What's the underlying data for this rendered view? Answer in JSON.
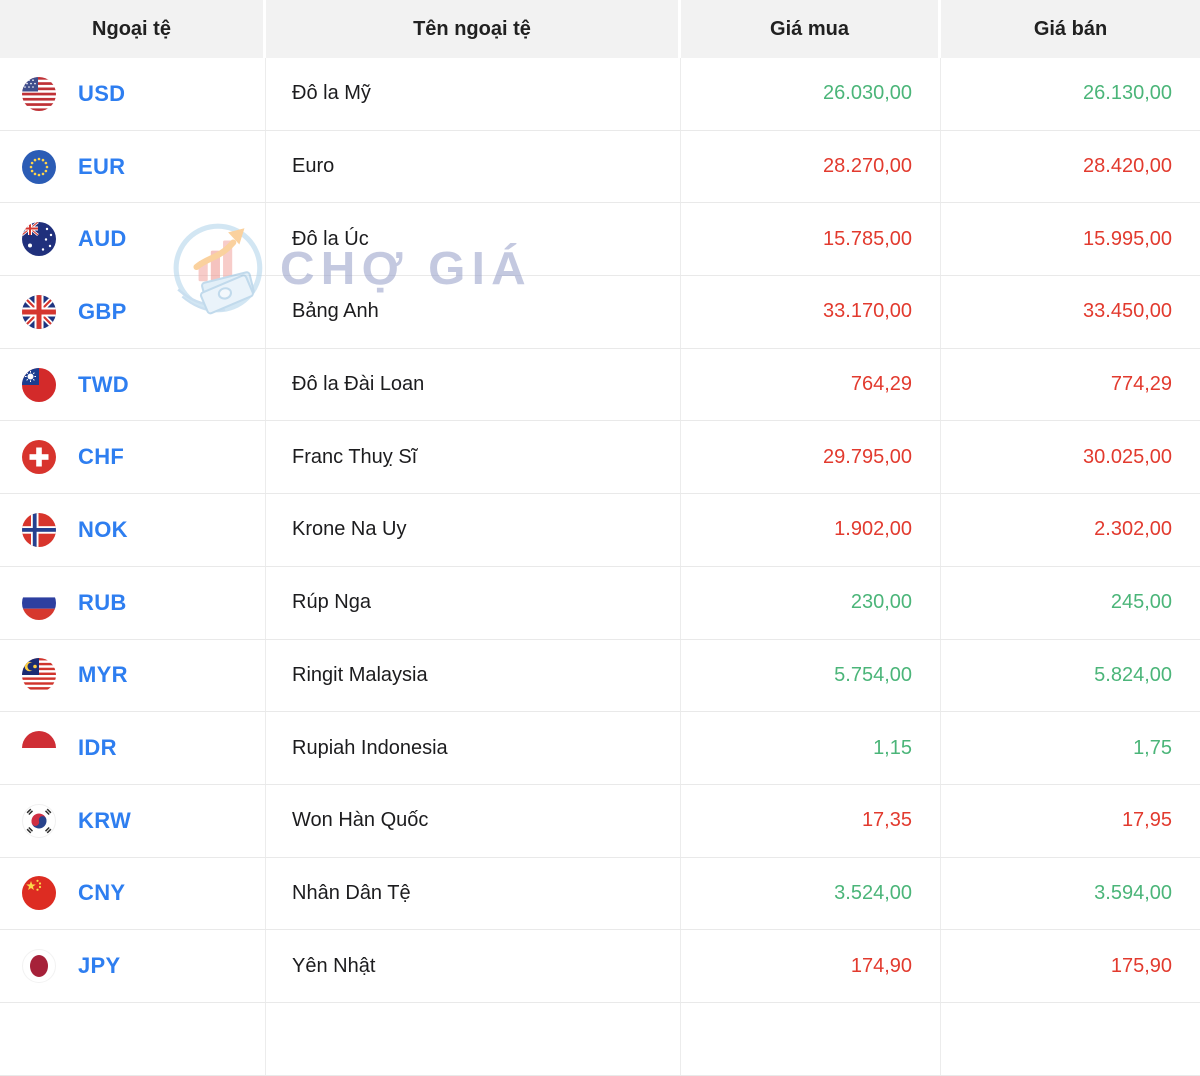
{
  "table": {
    "columns": [
      {
        "label": "Ngoại tệ"
      },
      {
        "label": "Tên ngoại tệ"
      },
      {
        "label": "Giá mua"
      },
      {
        "label": "Giá bán"
      }
    ],
    "rows": [
      {
        "code": "USD",
        "flag_icon": "usd-flag-icon",
        "name": "Đô la Mỹ",
        "buy": "26.030,00",
        "sell": "26.130,00",
        "trend": "up"
      },
      {
        "code": "EUR",
        "flag_icon": "eur-flag-icon",
        "name": "Euro",
        "buy": "28.270,00",
        "sell": "28.420,00",
        "trend": "down"
      },
      {
        "code": "AUD",
        "flag_icon": "aud-flag-icon",
        "name": "Đô la Úc",
        "buy": "15.785,00",
        "sell": "15.995,00",
        "trend": "down"
      },
      {
        "code": "GBP",
        "flag_icon": "gbp-flag-icon",
        "name": "Bảng Anh",
        "buy": "33.170,00",
        "sell": "33.450,00",
        "trend": "down"
      },
      {
        "code": "TWD",
        "flag_icon": "twd-flag-icon",
        "name": "Đô la Đài Loan",
        "buy": "764,29",
        "sell": "774,29",
        "trend": "down"
      },
      {
        "code": "CHF",
        "flag_icon": "chf-flag-icon",
        "name": "Franc Thuỵ Sĩ",
        "buy": "29.795,00",
        "sell": "30.025,00",
        "trend": "down"
      },
      {
        "code": "NOK",
        "flag_icon": "nok-flag-icon",
        "name": "Krone Na Uy",
        "buy": "1.902,00",
        "sell": "2.302,00",
        "trend": "down"
      },
      {
        "code": "RUB",
        "flag_icon": "rub-flag-icon",
        "name": "Rúp Nga",
        "buy": "230,00",
        "sell": "245,00",
        "trend": "up"
      },
      {
        "code": "MYR",
        "flag_icon": "myr-flag-icon",
        "name": "Ringit Malaysia",
        "buy": "5.754,00",
        "sell": "5.824,00",
        "trend": "up"
      },
      {
        "code": "IDR",
        "flag_icon": "idr-flag-icon",
        "name": "Rupiah Indonesia",
        "buy": "1,15",
        "sell": "1,75",
        "trend": "up"
      },
      {
        "code": "KRW",
        "flag_icon": "krw-flag-icon",
        "name": "Won Hàn Quốc",
        "buy": "17,35",
        "sell": "17,95",
        "trend": "down"
      },
      {
        "code": "CNY",
        "flag_icon": "cny-flag-icon",
        "name": "Nhân Dân Tệ",
        "buy": "3.524,00",
        "sell": "3.594,00",
        "trend": "up"
      },
      {
        "code": "JPY",
        "flag_icon": "jpy-flag-icon",
        "name": "Yên Nhật",
        "buy": "174,90",
        "sell": "175,90",
        "trend": "down"
      }
    ]
  },
  "watermark": {
    "text": "CHỢ GIÁ",
    "logo_icon": "cho-gia-logo-icon"
  },
  "colors": {
    "price_up": "#4bb579",
    "price_down": "#e23a2e",
    "code_link": "#2e7ef0",
    "header_bg": "#f2f2f2"
  }
}
